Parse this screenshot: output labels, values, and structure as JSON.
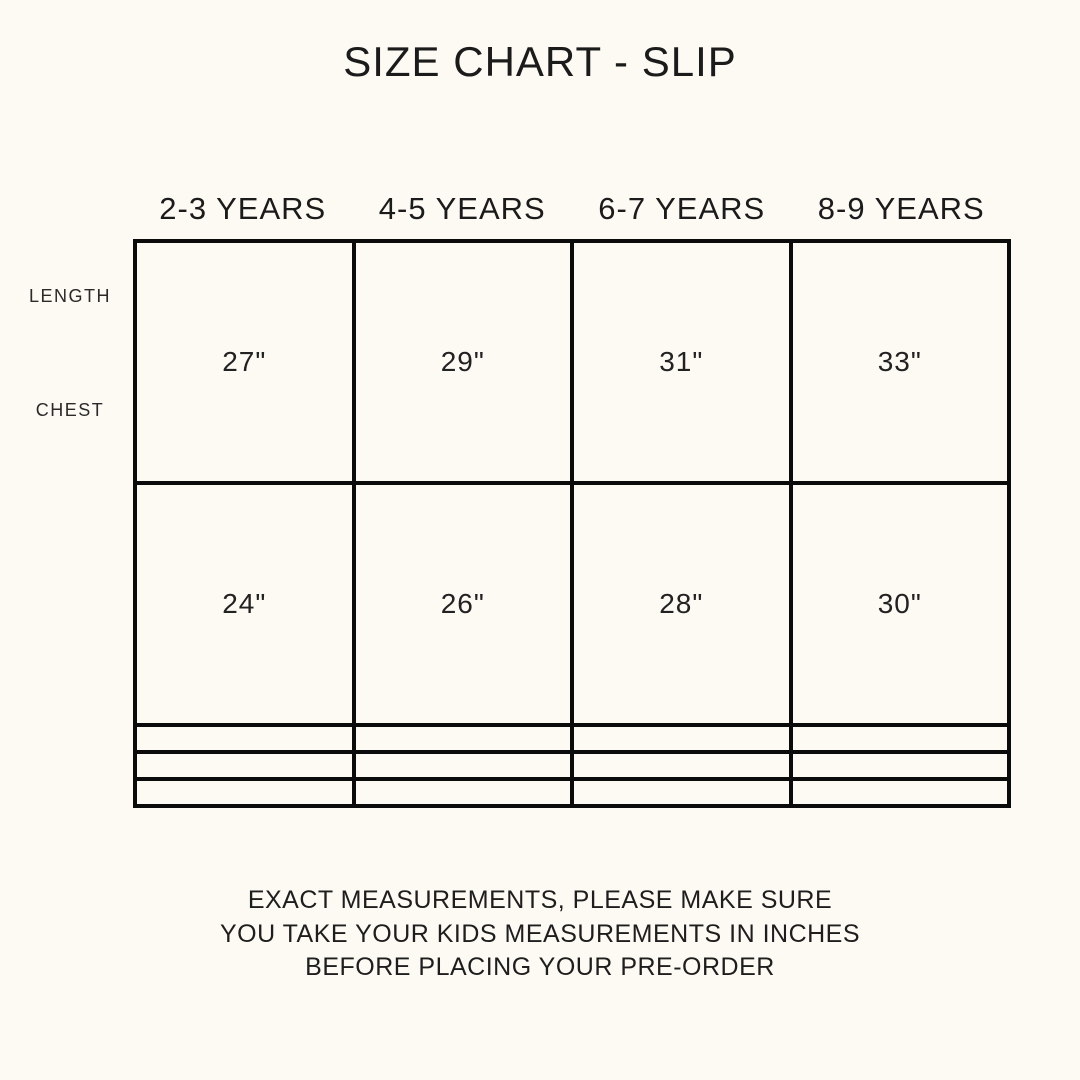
{
  "colors": {
    "background": "#FCFAF3",
    "text": "#1D1D1D",
    "table_border": "#0B0B0B"
  },
  "chart_data": {
    "type": "table",
    "title": "SIZE CHART - SLIP",
    "columns": [
      "2-3 YEARS",
      "4-5 YEARS",
      "6-7 YEARS",
      "8-9 YEARS"
    ],
    "row_labels": [
      "LENGTH",
      "CHEST",
      "",
      "",
      ""
    ],
    "cells": [
      [
        "27\"",
        "29\"",
        "31\"",
        "33\""
      ],
      [
        "24\"",
        "26\"",
        "28\"",
        "30\""
      ],
      [
        "",
        "",
        "",
        ""
      ],
      [
        "",
        "",
        "",
        ""
      ],
      [
        "",
        "",
        "",
        ""
      ]
    ],
    "values_numeric": {
      "LENGTH": [
        27,
        29,
        31,
        33
      ],
      "CHEST": [
        24,
        26,
        28,
        30
      ]
    },
    "unit": "inches",
    "layout": "measurement rows x age-range columns, 3 trailing empty rows"
  },
  "footer": {
    "lines": [
      "EXACT MEASUREMENTS, PLEASE MAKE SURE",
      "YOU TAKE YOUR KIDS MEASUREMENTS IN INCHES",
      "BEFORE PLACING YOUR PRE-ORDER"
    ]
  }
}
